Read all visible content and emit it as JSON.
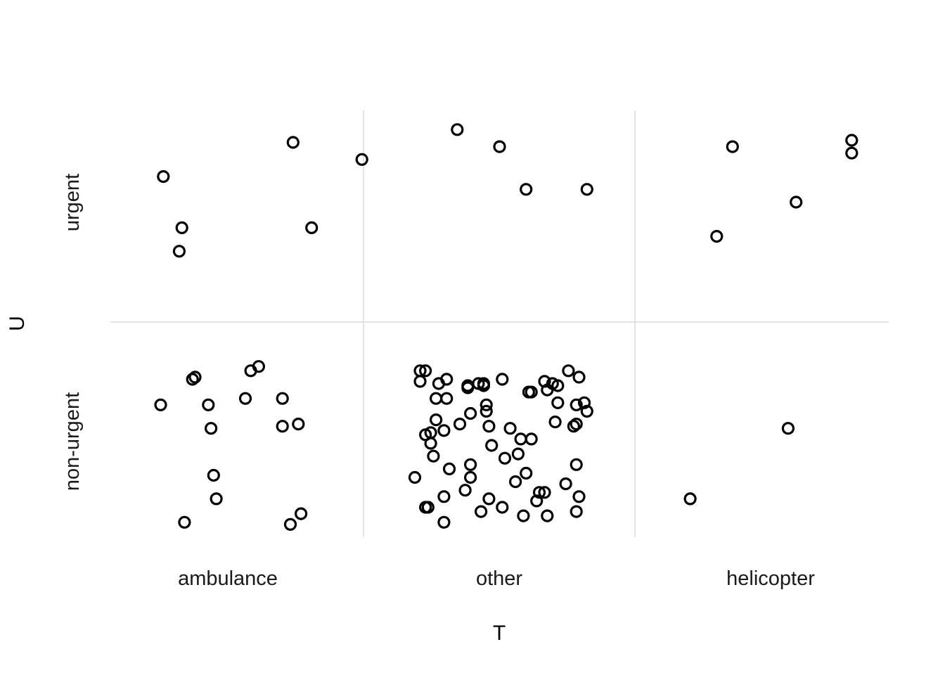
{
  "chart_data": {
    "type": "scatter",
    "subtype": "jittered categorical scatter",
    "xlabel": "T",
    "ylabel": "U",
    "x_categories": [
      "ambulance",
      "other",
      "helicopter"
    ],
    "y_categories": [
      "non-urgent",
      "urgent"
    ],
    "grid": true,
    "legend": "none",
    "point_style": "open circle",
    "points": [
      {
        "x": 1.22,
        "y": 1.85
      },
      {
        "x": 0.73,
        "y": 1.69
      },
      {
        "x": 1.48,
        "y": 1.77
      },
      {
        "x": 0.8,
        "y": 1.45
      },
      {
        "x": 1.29,
        "y": 1.45
      },
      {
        "x": 0.79,
        "y": 1.34
      },
      {
        "x": 0.84,
        "y": 0.74
      },
      {
        "x": 0.85,
        "y": 0.75
      },
      {
        "x": 0.72,
        "y": 0.62
      },
      {
        "x": 1.06,
        "y": 0.78
      },
      {
        "x": 1.09,
        "y": 0.8
      },
      {
        "x": 1.7,
        "y": 0.78
      },
      {
        "x": 1.72,
        "y": 0.78
      },
      {
        "x": 1.04,
        "y": 0.65
      },
      {
        "x": 1.18,
        "y": 0.65
      },
      {
        "x": 0.9,
        "y": 0.62
      },
      {
        "x": 0.91,
        "y": 0.51
      },
      {
        "x": 1.18,
        "y": 0.52
      },
      {
        "x": 1.24,
        "y": 0.53
      },
      {
        "x": 0.92,
        "y": 0.29
      },
      {
        "x": 0.93,
        "y": 0.18
      },
      {
        "x": 0.81,
        "y": 0.07
      },
      {
        "x": 1.25,
        "y": 0.11
      },
      {
        "x": 1.21,
        "y": 0.06
      },
      {
        "x": 1.84,
        "y": 1.91
      },
      {
        "x": 2.0,
        "y": 1.83
      },
      {
        "x": 2.1,
        "y": 1.63
      },
      {
        "x": 2.33,
        "y": 1.63
      },
      {
        "x": 1.7,
        "y": 0.73
      },
      {
        "x": 1.77,
        "y": 0.72
      },
      {
        "x": 1.8,
        "y": 0.74
      },
      {
        "x": 1.88,
        "y": 0.71
      },
      {
        "x": 1.92,
        "y": 0.72
      },
      {
        "x": 1.94,
        "y": 0.71
      },
      {
        "x": 1.94,
        "y": 0.72
      },
      {
        "x": 2.01,
        "y": 0.74
      },
      {
        "x": 2.17,
        "y": 0.73
      },
      {
        "x": 2.2,
        "y": 0.72
      },
      {
        "x": 2.22,
        "y": 0.71
      },
      {
        "x": 2.26,
        "y": 0.78
      },
      {
        "x": 2.3,
        "y": 0.75
      },
      {
        "x": 1.88,
        "y": 0.7
      },
      {
        "x": 2.11,
        "y": 0.68
      },
      {
        "x": 2.12,
        "y": 0.68
      },
      {
        "x": 2.18,
        "y": 0.69
      },
      {
        "x": 1.76,
        "y": 0.65
      },
      {
        "x": 1.8,
        "y": 0.65
      },
      {
        "x": 1.95,
        "y": 0.62
      },
      {
        "x": 2.22,
        "y": 0.63
      },
      {
        "x": 2.29,
        "y": 0.62
      },
      {
        "x": 2.32,
        "y": 0.63
      },
      {
        "x": 2.33,
        "y": 0.59
      },
      {
        "x": 1.89,
        "y": 0.58
      },
      {
        "x": 1.95,
        "y": 0.59
      },
      {
        "x": 1.76,
        "y": 0.55
      },
      {
        "x": 1.85,
        "y": 0.53
      },
      {
        "x": 2.21,
        "y": 0.54
      },
      {
        "x": 2.28,
        "y": 0.52
      },
      {
        "x": 2.29,
        "y": 0.53
      },
      {
        "x": 1.72,
        "y": 0.48
      },
      {
        "x": 1.74,
        "y": 0.49
      },
      {
        "x": 1.79,
        "y": 0.5
      },
      {
        "x": 1.96,
        "y": 0.52
      },
      {
        "x": 2.04,
        "y": 0.51
      },
      {
        "x": 2.08,
        "y": 0.46
      },
      {
        "x": 2.12,
        "y": 0.46
      },
      {
        "x": 1.74,
        "y": 0.44
      },
      {
        "x": 1.97,
        "y": 0.43
      },
      {
        "x": 2.07,
        "y": 0.39
      },
      {
        "x": 2.02,
        "y": 0.37
      },
      {
        "x": 1.75,
        "y": 0.38
      },
      {
        "x": 1.81,
        "y": 0.32
      },
      {
        "x": 1.89,
        "y": 0.34
      },
      {
        "x": 2.29,
        "y": 0.34
      },
      {
        "x": 1.68,
        "y": 0.28
      },
      {
        "x": 1.89,
        "y": 0.28
      },
      {
        "x": 2.06,
        "y": 0.26
      },
      {
        "x": 2.1,
        "y": 0.3
      },
      {
        "x": 2.25,
        "y": 0.25
      },
      {
        "x": 1.87,
        "y": 0.22
      },
      {
        "x": 2.15,
        "y": 0.21
      },
      {
        "x": 2.17,
        "y": 0.21
      },
      {
        "x": 1.73,
        "y": 0.14
      },
      {
        "x": 1.79,
        "y": 0.19
      },
      {
        "x": 1.96,
        "y": 0.18
      },
      {
        "x": 2.14,
        "y": 0.17
      },
      {
        "x": 2.3,
        "y": 0.19
      },
      {
        "x": 1.72,
        "y": 0.14
      },
      {
        "x": 1.93,
        "y": 0.12
      },
      {
        "x": 2.01,
        "y": 0.14
      },
      {
        "x": 2.29,
        "y": 0.12
      },
      {
        "x": 1.79,
        "y": 0.07
      },
      {
        "x": 2.09,
        "y": 0.1
      },
      {
        "x": 2.18,
        "y": 0.1
      },
      {
        "x": 2.88,
        "y": 1.83
      },
      {
        "x": 3.33,
        "y": 1.86
      },
      {
        "x": 3.33,
        "y": 1.8
      },
      {
        "x": 3.12,
        "y": 1.57
      },
      {
        "x": 2.82,
        "y": 1.41
      },
      {
        "x": 3.09,
        "y": 0.51
      },
      {
        "x": 2.72,
        "y": 0.18
      }
    ],
    "x_range": [
      0.53,
      3.47
    ],
    "y_range": [
      0.0,
      2.0
    ]
  }
}
